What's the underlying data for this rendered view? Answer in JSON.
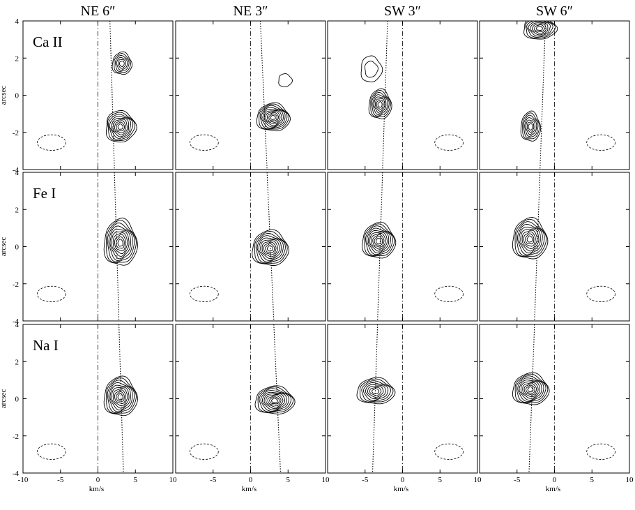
{
  "chart_data": {
    "type": "contour",
    "layout": "grid-3x4",
    "column_titles": [
      "NE 6″",
      "NE 3″",
      "SW 3″",
      "SW 6″"
    ],
    "row_labels": [
      "Ca II",
      "Fe I",
      "Na I"
    ],
    "xlabel": "km/s",
    "ylabel": "arcsec",
    "xlim": [
      -10,
      10
    ],
    "ylim": [
      -4,
      4
    ],
    "xticks": [
      -10,
      -5,
      0,
      5,
      10
    ],
    "yticks": [
      -4,
      -2,
      0,
      2,
      4
    ],
    "grid": false,
    "reference_lines": {
      "dash_dot_x": [
        0,
        0,
        0,
        0
      ],
      "dotted_path": [
        {
          "top": [
            1.6,
            4
          ],
          "bottom": [
            3.4,
            -4
          ]
        },
        {
          "top": [
            1.3,
            4
          ],
          "bottom": [
            4.0,
            -4
          ]
        },
        {
          "top": [
            -2.0,
            4
          ],
          "bottom": [
            -4.0,
            -4
          ]
        },
        {
          "top": [
            -1.2,
            4
          ],
          "bottom": [
            -3.4,
            -4
          ]
        }
      ]
    },
    "beam_ellipse": {
      "left_center": [
        -6.2,
        -2.55
      ],
      "right_center": [
        6.2,
        -2.55
      ],
      "size": [
        1.9,
        0.42
      ]
    },
    "panels": [
      {
        "row": 0,
        "col": 0,
        "sources": [
          {
            "x": 3.2,
            "y": 1.7,
            "sx": 1.3,
            "sy": 0.6,
            "levels": 6
          },
          {
            "x": 3.0,
            "y": -1.7,
            "sx": 2.0,
            "sy": 0.85,
            "levels": 9
          }
        ]
      },
      {
        "row": 0,
        "col": 1,
        "sources": [
          {
            "x": 3.0,
            "y": -1.2,
            "sx": 2.2,
            "sy": 0.75,
            "levels": 10
          },
          {
            "x": 4.6,
            "y": 0.8,
            "sx": 0.9,
            "sy": 0.35,
            "levels": 1
          }
        ]
      },
      {
        "row": 0,
        "col": 2,
        "sources": [
          {
            "x": -3.0,
            "y": -0.5,
            "sx": 1.5,
            "sy": 0.8,
            "levels": 8
          },
          {
            "x": -4.2,
            "y": 1.4,
            "sx": 1.4,
            "sy": 0.7,
            "levels": 2
          }
        ]
      },
      {
        "row": 0,
        "col": 3,
        "sources": [
          {
            "x": -3.2,
            "y": -1.7,
            "sx": 1.3,
            "sy": 0.8,
            "levels": 7
          },
          {
            "x": -2.0,
            "y": 3.6,
            "sx": 2.2,
            "sy": 0.6,
            "levels": 8
          }
        ]
      },
      {
        "row": 1,
        "col": 0,
        "sources": [
          {
            "x": 3.0,
            "y": 0.2,
            "sx": 2.2,
            "sy": 1.25,
            "levels": 10
          }
        ]
      },
      {
        "row": 1,
        "col": 1,
        "sources": [
          {
            "x": 2.6,
            "y": -0.1,
            "sx": 2.4,
            "sy": 0.95,
            "levels": 10
          }
        ]
      },
      {
        "row": 1,
        "col": 2,
        "sources": [
          {
            "x": -3.2,
            "y": 0.3,
            "sx": 2.2,
            "sy": 0.95,
            "levels": 10
          }
        ]
      },
      {
        "row": 1,
        "col": 3,
        "sources": [
          {
            "x": -3.3,
            "y": 0.4,
            "sx": 2.3,
            "sy": 1.1,
            "levels": 10
          }
        ]
      },
      {
        "row": 2,
        "col": 0,
        "sources": [
          {
            "x": 3.0,
            "y": 0.1,
            "sx": 2.2,
            "sy": 1.05,
            "levels": 10
          }
        ]
      },
      {
        "row": 2,
        "col": 1,
        "sources": [
          {
            "x": 3.2,
            "y": -0.1,
            "sx": 2.6,
            "sy": 0.75,
            "levels": 10
          }
        ]
      },
      {
        "row": 2,
        "col": 2,
        "sources": [
          {
            "x": -3.6,
            "y": 0.4,
            "sx": 2.5,
            "sy": 0.7,
            "levels": 8
          }
        ]
      },
      {
        "row": 2,
        "col": 3,
        "sources": [
          {
            "x": -3.2,
            "y": 0.5,
            "sx": 2.4,
            "sy": 0.85,
            "levels": 10
          }
        ]
      }
    ]
  }
}
